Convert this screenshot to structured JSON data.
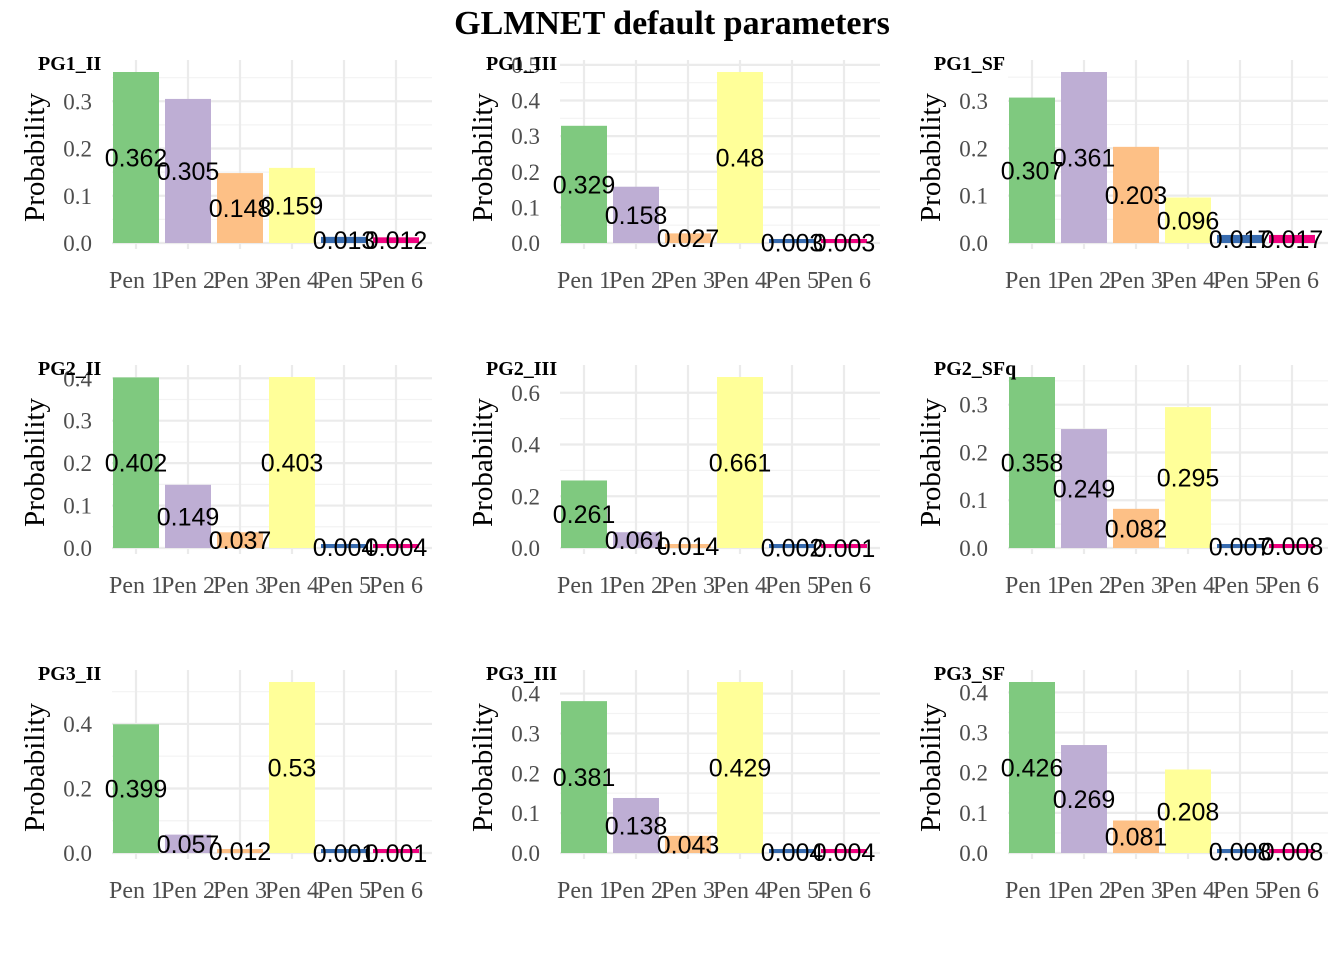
{
  "figure_title": "GLMNET default parameters",
  "colors": {
    "Pen 1": "#7fc97f",
    "Pen 2": "#beaed4",
    "Pen 3": "#fdc086",
    "Pen 4": "#ffff99",
    "Pen 5": "#386cb0",
    "Pen 6": "#f0027f"
  },
  "chart_data": [
    {
      "type": "bar",
      "title": "PG1_II",
      "ylabel": "Probability",
      "categories": [
        "Pen 1",
        "Pen 2",
        "Pen 3",
        "Pen 4",
        "Pen 5",
        "Pen 6"
      ],
      "values": [
        0.362,
        0.305,
        0.148,
        0.159,
        0.013,
        0.012
      ],
      "labels": [
        "0.362",
        "0.305",
        "0.148",
        "0.159",
        "0.013",
        "0.012"
      ],
      "ylim": [
        0,
        0.362
      ],
      "yticks": [
        0.0,
        0.1,
        0.2,
        0.3
      ],
      "ytick_labels": [
        "0.0",
        "0.1",
        "0.2",
        "0.3"
      ]
    },
    {
      "type": "bar",
      "title": "PG1_III",
      "ylabel": "Probability",
      "categories": [
        "Pen 1",
        "Pen 2",
        "Pen 3",
        "Pen 4",
        "Pen 5",
        "Pen 6"
      ],
      "values": [
        0.329,
        0.158,
        0.027,
        0.48,
        0.003,
        0.003
      ],
      "labels": [
        "0.329",
        "0.158",
        "0.027",
        "0.48",
        "0.003",
        "0.003"
      ],
      "ylim": [
        0,
        0.48
      ],
      "yticks": [
        0.0,
        0.1,
        0.2,
        0.3,
        0.4,
        0.5
      ],
      "ytick_labels": [
        "0.0",
        "0.1",
        "0.2",
        "0.3",
        "0.4",
        "0.5"
      ]
    },
    {
      "type": "bar",
      "title": "PG1_SF",
      "ylabel": "Probability",
      "categories": [
        "Pen 1",
        "Pen 2",
        "Pen 3",
        "Pen 4",
        "Pen 5",
        "Pen 6"
      ],
      "values": [
        0.307,
        0.361,
        0.203,
        0.096,
        0.017,
        0.017
      ],
      "labels": [
        "0.307",
        "0.361",
        "0.203",
        "0.096",
        "0.017",
        "0.017"
      ],
      "ylim": [
        0,
        0.361
      ],
      "yticks": [
        0.0,
        0.1,
        0.2,
        0.3
      ],
      "ytick_labels": [
        "0.0",
        "0.1",
        "0.2",
        "0.3"
      ]
    },
    {
      "type": "bar",
      "title": "PG2_II",
      "ylabel": "Probability",
      "categories": [
        "Pen 1",
        "Pen 2",
        "Pen 3",
        "Pen 4",
        "Pen 5",
        "Pen 6"
      ],
      "values": [
        0.402,
        0.149,
        0.037,
        0.403,
        0.004,
        0.004
      ],
      "labels": [
        "0.402",
        "0.149",
        "0.037",
        "0.403",
        "0.004",
        "0.004"
      ],
      "ylim": [
        0,
        0.403
      ],
      "yticks": [
        0.0,
        0.1,
        0.2,
        0.3,
        0.4
      ],
      "ytick_labels": [
        "0.0",
        "0.1",
        "0.2",
        "0.3",
        "0.4"
      ]
    },
    {
      "type": "bar",
      "title": "PG2_III",
      "ylabel": "Probability",
      "categories": [
        "Pen 1",
        "Pen 2",
        "Pen 3",
        "Pen 4",
        "Pen 5",
        "Pen 6"
      ],
      "values": [
        0.261,
        0.061,
        0.014,
        0.661,
        0.002,
        0.001
      ],
      "labels": [
        "0.261",
        "0.061",
        "0.014",
        "0.661",
        "0.002",
        "0.001"
      ],
      "ylim": [
        0,
        0.661
      ],
      "yticks": [
        0.0,
        0.2,
        0.4,
        0.6
      ],
      "ytick_labels": [
        "0.0",
        "0.2",
        "0.4",
        "0.6"
      ]
    },
    {
      "type": "bar",
      "title": "PG2_SFq",
      "ylabel": "Probability",
      "categories": [
        "Pen 1",
        "Pen 2",
        "Pen 3",
        "Pen 4",
        "Pen 5",
        "Pen 6"
      ],
      "values": [
        0.358,
        0.249,
        0.082,
        0.295,
        0.007,
        0.008
      ],
      "labels": [
        "0.358",
        "0.249",
        "0.082",
        "0.295",
        "0.007",
        "0.008"
      ],
      "ylim": [
        0,
        0.358
      ],
      "yticks": [
        0.0,
        0.1,
        0.2,
        0.3
      ],
      "ytick_labels": [
        "0.0",
        "0.1",
        "0.2",
        "0.3"
      ]
    },
    {
      "type": "bar",
      "title": "PG3_II",
      "ylabel": "Probability",
      "categories": [
        "Pen 1",
        "Pen 2",
        "Pen 3",
        "Pen 4",
        "Pen 5",
        "Pen 6"
      ],
      "values": [
        0.399,
        0.057,
        0.012,
        0.53,
        0.001,
        0.001
      ],
      "labels": [
        "0.399",
        "0.057",
        "0.012",
        "0.53",
        "0.001",
        "0.001"
      ],
      "ylim": [
        0,
        0.53
      ],
      "yticks": [
        0.0,
        0.2,
        0.4
      ],
      "ytick_labels": [
        "0.0",
        "0.2",
        "0.4"
      ]
    },
    {
      "type": "bar",
      "title": "PG3_III",
      "ylabel": "Probability",
      "categories": [
        "Pen 1",
        "Pen 2",
        "Pen 3",
        "Pen 4",
        "Pen 5",
        "Pen 6"
      ],
      "values": [
        0.381,
        0.138,
        0.043,
        0.429,
        0.004,
        0.004
      ],
      "labels": [
        "0.381",
        "0.138",
        "0.043",
        "0.429",
        "0.004",
        "0.004"
      ],
      "ylim": [
        0,
        0.429
      ],
      "yticks": [
        0.0,
        0.1,
        0.2,
        0.3,
        0.4
      ],
      "ytick_labels": [
        "0.0",
        "0.1",
        "0.2",
        "0.3",
        "0.4"
      ]
    },
    {
      "type": "bar",
      "title": "PG3_SF",
      "ylabel": "Probability",
      "categories": [
        "Pen 1",
        "Pen 2",
        "Pen 3",
        "Pen 4",
        "Pen 5",
        "Pen 6"
      ],
      "values": [
        0.426,
        0.269,
        0.081,
        0.208,
        0.008,
        0.008
      ],
      "labels": [
        "0.426",
        "0.269",
        "0.081",
        "0.208",
        "0.008",
        "0.008"
      ],
      "ylim": [
        0,
        0.426
      ],
      "yticks": [
        0.0,
        0.1,
        0.2,
        0.3,
        0.4
      ],
      "ytick_labels": [
        "0.0",
        "0.1",
        "0.2",
        "0.3",
        "0.4"
      ]
    }
  ]
}
